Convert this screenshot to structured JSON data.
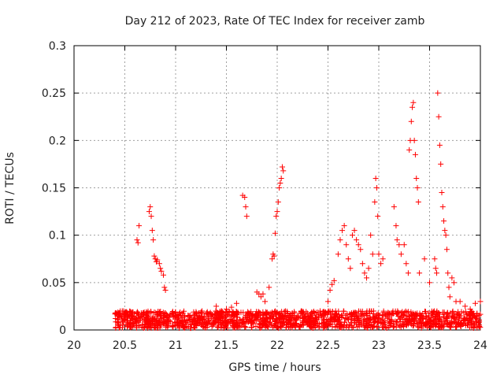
{
  "chart_data": {
    "type": "scatter",
    "title": "Day 212 of 2023, Rate Of TEC Index for receiver zamb",
    "xlabel": "GPS time / hours",
    "ylabel": "ROTI / TECUs",
    "xlim": [
      20,
      24
    ],
    "ylim": [
      0,
      0.3
    ],
    "x_ticks": [
      20,
      20.5,
      21,
      21.5,
      22,
      22.5,
      23,
      23.5,
      24
    ],
    "x_tick_labels": [
      "20",
      "20.5",
      "21",
      "21.5",
      "22",
      "22.5",
      "23",
      "23.5",
      "24"
    ],
    "y_ticks": [
      0,
      0.05,
      0.1,
      0.15,
      0.2,
      0.25,
      0.3
    ],
    "y_tick_labels": [
      "0",
      "0.05",
      "0.1",
      "0.15",
      "0.2",
      "0.25",
      "0.3"
    ],
    "grid": true,
    "marker": "+",
    "color": "#ff0000",
    "baseline_band": {
      "description": "dense cluster of low ROTI values along the bottom",
      "x_range": [
        20.4,
        24
      ],
      "y_range": [
        0.002,
        0.02
      ]
    },
    "series": [
      {
        "values": [
          [
            20.62,
            0.095
          ],
          [
            20.63,
            0.092
          ],
          [
            20.64,
            0.11
          ],
          [
            20.74,
            0.125
          ],
          [
            20.75,
            0.13
          ],
          [
            20.76,
            0.12
          ],
          [
            20.77,
            0.105
          ],
          [
            20.78,
            0.095
          ],
          [
            20.79,
            0.078
          ],
          [
            20.8,
            0.075
          ],
          [
            20.81,
            0.072
          ],
          [
            20.82,
            0.074
          ],
          [
            20.84,
            0.07
          ],
          [
            20.85,
            0.065
          ],
          [
            20.86,
            0.062
          ],
          [
            20.88,
            0.058
          ],
          [
            20.89,
            0.045
          ],
          [
            20.9,
            0.042
          ],
          [
            21.4,
            0.025
          ],
          [
            21.45,
            0.02
          ],
          [
            21.5,
            0.022
          ],
          [
            21.55,
            0.024
          ],
          [
            21.6,
            0.028
          ],
          [
            21.66,
            0.142
          ],
          [
            21.68,
            0.14
          ],
          [
            21.69,
            0.13
          ],
          [
            21.7,
            0.12
          ],
          [
            21.8,
            0.04
          ],
          [
            21.82,
            0.038
          ],
          [
            21.84,
            0.035
          ],
          [
            21.86,
            0.038
          ],
          [
            21.88,
            0.03
          ],
          [
            21.92,
            0.045
          ],
          [
            21.95,
            0.075
          ],
          [
            21.96,
            0.08
          ],
          [
            21.97,
            0.078
          ],
          [
            21.98,
            0.102
          ],
          [
            21.99,
            0.12
          ],
          [
            22.0,
            0.125
          ],
          [
            22.01,
            0.135
          ],
          [
            22.02,
            0.15
          ],
          [
            22.03,
            0.155
          ],
          [
            22.04,
            0.16
          ],
          [
            22.05,
            0.172
          ],
          [
            22.06,
            0.168
          ],
          [
            22.5,
            0.03
          ],
          [
            22.52,
            0.042
          ],
          [
            22.54,
            0.048
          ],
          [
            22.56,
            0.052
          ],
          [
            22.6,
            0.08
          ],
          [
            22.62,
            0.095
          ],
          [
            22.64,
            0.105
          ],
          [
            22.66,
            0.11
          ],
          [
            22.68,
            0.09
          ],
          [
            22.7,
            0.075
          ],
          [
            22.72,
            0.065
          ],
          [
            22.74,
            0.1
          ],
          [
            22.76,
            0.105
          ],
          [
            22.78,
            0.095
          ],
          [
            22.8,
            0.09
          ],
          [
            22.82,
            0.085
          ],
          [
            22.84,
            0.07
          ],
          [
            22.86,
            0.06
          ],
          [
            22.88,
            0.055
          ],
          [
            22.9,
            0.065
          ],
          [
            22.92,
            0.1
          ],
          [
            22.94,
            0.08
          ],
          [
            22.96,
            0.135
          ],
          [
            22.97,
            0.16
          ],
          [
            22.98,
            0.15
          ],
          [
            22.99,
            0.12
          ],
          [
            23.0,
            0.08
          ],
          [
            23.02,
            0.07
          ],
          [
            23.04,
            0.075
          ],
          [
            23.15,
            0.13
          ],
          [
            23.17,
            0.11
          ],
          [
            23.18,
            0.095
          ],
          [
            23.2,
            0.09
          ],
          [
            23.22,
            0.08
          ],
          [
            23.25,
            0.09
          ],
          [
            23.27,
            0.07
          ],
          [
            23.29,
            0.06
          ],
          [
            23.3,
            0.19
          ],
          [
            23.31,
            0.2
          ],
          [
            23.32,
            0.22
          ],
          [
            23.33,
            0.235
          ],
          [
            23.34,
            0.24
          ],
          [
            23.35,
            0.2
          ],
          [
            23.36,
            0.185
          ],
          [
            23.37,
            0.16
          ],
          [
            23.38,
            0.15
          ],
          [
            23.39,
            0.135
          ],
          [
            23.4,
            0.06
          ],
          [
            23.45,
            0.075
          ],
          [
            23.5,
            0.05
          ],
          [
            23.55,
            0.075
          ],
          [
            23.56,
            0.065
          ],
          [
            23.57,
            0.06
          ],
          [
            23.58,
            0.25
          ],
          [
            23.59,
            0.225
          ],
          [
            23.6,
            0.195
          ],
          [
            23.61,
            0.175
          ],
          [
            23.62,
            0.145
          ],
          [
            23.63,
            0.13
          ],
          [
            23.64,
            0.115
          ],
          [
            23.65,
            0.105
          ],
          [
            23.66,
            0.1
          ],
          [
            23.67,
            0.085
          ],
          [
            23.68,
            0.06
          ],
          [
            23.69,
            0.045
          ],
          [
            23.7,
            0.035
          ],
          [
            23.72,
            0.055
          ],
          [
            23.74,
            0.05
          ],
          [
            23.76,
            0.03
          ],
          [
            23.8,
            0.03
          ],
          [
            23.85,
            0.025
          ],
          [
            23.9,
            0.022
          ],
          [
            23.95,
            0.028
          ],
          [
            24.0,
            0.03
          ]
        ]
      }
    ]
  }
}
